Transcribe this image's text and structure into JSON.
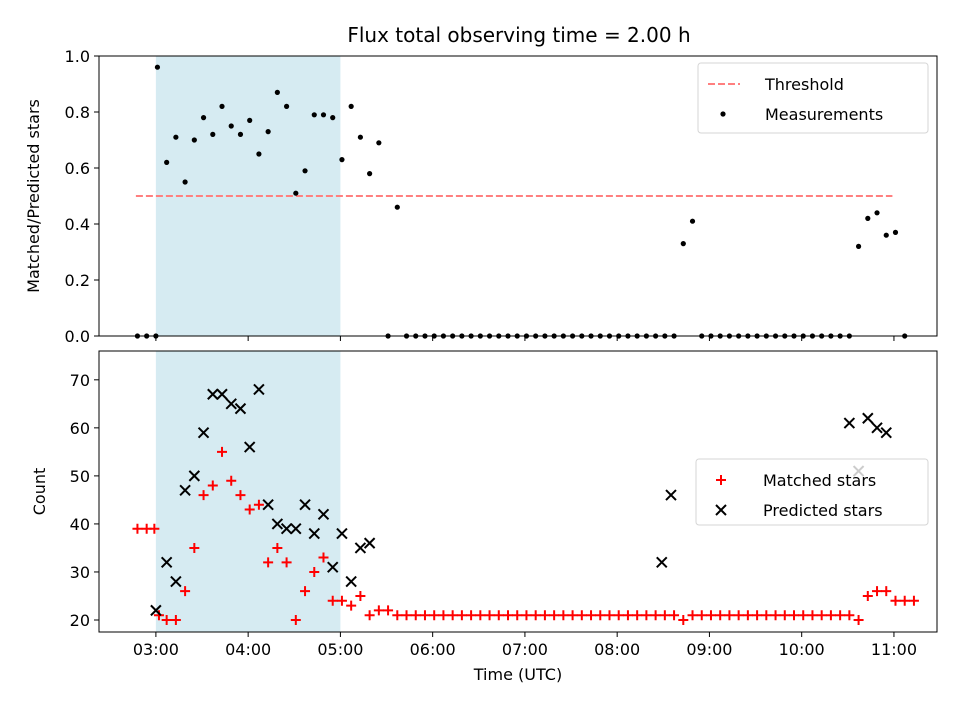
{
  "chart_data": [
    {
      "type": "scatter",
      "title": "Flux total observing time = 2.00 h",
      "xlabel": "",
      "ylabel": "Matched/Predicted stars",
      "xlim": [
        "02:23",
        "11:28"
      ],
      "ylim": [
        0.0,
        1.0
      ],
      "yticks": [
        "0.0",
        "0.2",
        "0.4",
        "0.6",
        "0.8",
        "1.0"
      ],
      "shaded_span": {
        "start": "03:00",
        "end": "05:00",
        "color": "#add8e6"
      },
      "legend": {
        "position": "top-right",
        "entries": [
          "Threshold",
          "Measurements"
        ]
      },
      "series": [
        {
          "name": "Threshold",
          "style": "dashed-line",
          "color": "#ff7f7f",
          "x": [
            "02:47",
            "10:59"
          ],
          "y": [
            0.5,
            0.5
          ]
        },
        {
          "name": "Measurements",
          "style": "dot",
          "color": "#000000",
          "x": [
            "02:48",
            "02:54",
            "03:00",
            "03:01",
            "03:07",
            "03:13",
            "03:19",
            "03:25",
            "03:31",
            "03:37",
            "03:43",
            "03:49",
            "03:55",
            "04:01",
            "04:07",
            "04:13",
            "04:19",
            "04:25",
            "04:31",
            "04:37",
            "04:43",
            "04:49",
            "04:55",
            "05:01",
            "05:07",
            "05:13",
            "05:19",
            "05:25",
            "05:31",
            "05:37",
            "05:43",
            "05:49",
            "05:55",
            "06:01",
            "06:07",
            "06:13",
            "06:19",
            "06:25",
            "06:31",
            "06:37",
            "06:43",
            "06:49",
            "06:55",
            "07:01",
            "07:07",
            "07:13",
            "07:19",
            "07:25",
            "07:31",
            "07:37",
            "07:43",
            "07:49",
            "07:55",
            "08:01",
            "08:07",
            "08:13",
            "08:19",
            "08:25",
            "08:31",
            "08:37",
            "08:43",
            "08:49",
            "08:55",
            "09:01",
            "09:07",
            "09:13",
            "09:19",
            "09:25",
            "09:31",
            "09:37",
            "09:43",
            "09:49",
            "09:55",
            "10:01",
            "10:07",
            "10:13",
            "10:19",
            "10:25",
            "10:31",
            "10:37",
            "10:43",
            "10:49",
            "10:55",
            "11:01",
            "11:07"
          ],
          "y": [
            0.0,
            0.0,
            0.0,
            0.96,
            0.62,
            0.71,
            0.55,
            0.7,
            0.78,
            0.72,
            0.82,
            0.75,
            0.72,
            0.77,
            0.65,
            0.73,
            0.87,
            0.82,
            0.51,
            0.59,
            0.79,
            0.79,
            0.78,
            0.63,
            0.82,
            0.71,
            0.58,
            0.69,
            0.0,
            0.46,
            0.0,
            0.0,
            0.0,
            0.0,
            0.0,
            0.0,
            0.0,
            0.0,
            0.0,
            0.0,
            0.0,
            0.0,
            0.0,
            0.0,
            0.0,
            0.0,
            0.0,
            0.0,
            0.0,
            0.0,
            0.0,
            0.0,
            0.0,
            0.0,
            0.0,
            0.0,
            0.0,
            0.0,
            0.0,
            0.0,
            0.33,
            0.41,
            0.0,
            0.0,
            0.0,
            0.0,
            0.0,
            0.0,
            0.0,
            0.0,
            0.0,
            0.0,
            0.0,
            0.0,
            0.0,
            0.0,
            0.0,
            0.0,
            0.0,
            0.32,
            0.42,
            0.44,
            0.36,
            0.37,
            0.0
          ]
        }
      ]
    },
    {
      "type": "scatter",
      "title": "",
      "xlabel": "Time (UTC)",
      "ylabel": "Count",
      "xlim": [
        "02:23",
        "11:28"
      ],
      "ylim": [
        17.5,
        76
      ],
      "xticks": [
        "03:00",
        "04:00",
        "05:00",
        "06:00",
        "07:00",
        "08:00",
        "09:00",
        "10:00",
        "11:00"
      ],
      "yticks": [
        "20",
        "30",
        "40",
        "50",
        "60",
        "70"
      ],
      "shaded_span": {
        "start": "03:00",
        "end": "05:00",
        "color": "#add8e6"
      },
      "legend": {
        "position": "center-right",
        "entries": [
          "Matched stars",
          "Predicted stars"
        ]
      },
      "series": [
        {
          "name": "Matched stars",
          "marker": "+",
          "color": "#ff0000",
          "x": [
            "02:48",
            "02:54",
            "02:59",
            "03:02",
            "03:07",
            "03:13",
            "03:19",
            "03:25",
            "03:31",
            "03:37",
            "03:43",
            "03:49",
            "03:55",
            "04:01",
            "04:07",
            "04:13",
            "04:19",
            "04:25",
            "04:31",
            "04:37",
            "04:43",
            "04:49",
            "04:55",
            "05:01",
            "05:07",
            "05:13",
            "05:19",
            "05:25",
            "05:31",
            "05:37",
            "05:43",
            "05:49",
            "05:55",
            "06:01",
            "06:07",
            "06:13",
            "06:19",
            "06:25",
            "06:31",
            "06:37",
            "06:43",
            "06:49",
            "06:55",
            "07:01",
            "07:07",
            "07:13",
            "07:19",
            "07:25",
            "07:31",
            "07:37",
            "07:43",
            "07:49",
            "07:55",
            "08:01",
            "08:07",
            "08:13",
            "08:19",
            "08:25",
            "08:31",
            "08:37",
            "08:43",
            "08:49",
            "08:55",
            "09:01",
            "09:07",
            "09:13",
            "09:19",
            "09:25",
            "09:31",
            "09:37",
            "09:43",
            "09:49",
            "09:55",
            "10:01",
            "10:07",
            "10:13",
            "10:19",
            "10:25",
            "10:31",
            "10:37",
            "10:43",
            "10:49",
            "10:55",
            "11:01",
            "11:07",
            "11:13"
          ],
          "y": [
            39,
            39,
            39,
            21,
            20,
            20,
            26,
            35,
            46,
            48,
            55,
            49,
            46,
            43,
            44,
            32,
            35,
            32,
            20,
            26,
            30,
            33,
            24,
            24,
            23,
            25,
            21,
            22,
            22,
            21,
            21,
            21,
            21,
            21,
            21,
            21,
            21,
            21,
            21,
            21,
            21,
            21,
            21,
            21,
            21,
            21,
            21,
            21,
            21,
            21,
            21,
            21,
            21,
            21,
            21,
            21,
            21,
            21,
            21,
            21,
            20,
            21,
            21,
            21,
            21,
            21,
            21,
            21,
            21,
            21,
            21,
            21,
            21,
            21,
            21,
            21,
            21,
            21,
            21,
            20,
            25,
            26,
            26,
            24,
            24,
            24
          ]
        },
        {
          "name": "Predicted stars",
          "marker": "x",
          "color": "#000000",
          "x": [
            "03:00",
            "03:07",
            "03:13",
            "03:19",
            "03:25",
            "03:31",
            "03:37",
            "03:43",
            "03:49",
            "03:55",
            "04:01",
            "04:07",
            "04:13",
            "04:19",
            "04:25",
            "04:31",
            "04:37",
            "04:43",
            "04:49",
            "04:55",
            "05:01",
            "05:07",
            "05:13",
            "05:19",
            "08:29",
            "08:35",
            "10:31",
            "10:37",
            "10:43",
            "10:49",
            "10:55"
          ],
          "y": [
            22,
            32,
            28,
            47,
            50,
            59,
            67,
            67,
            65,
            64,
            56,
            68,
            44,
            40,
            39,
            39,
            44,
            38,
            42,
            31,
            38,
            28,
            35,
            36,
            32,
            46,
            61,
            51,
            62,
            60,
            59
          ]
        }
      ]
    }
  ]
}
